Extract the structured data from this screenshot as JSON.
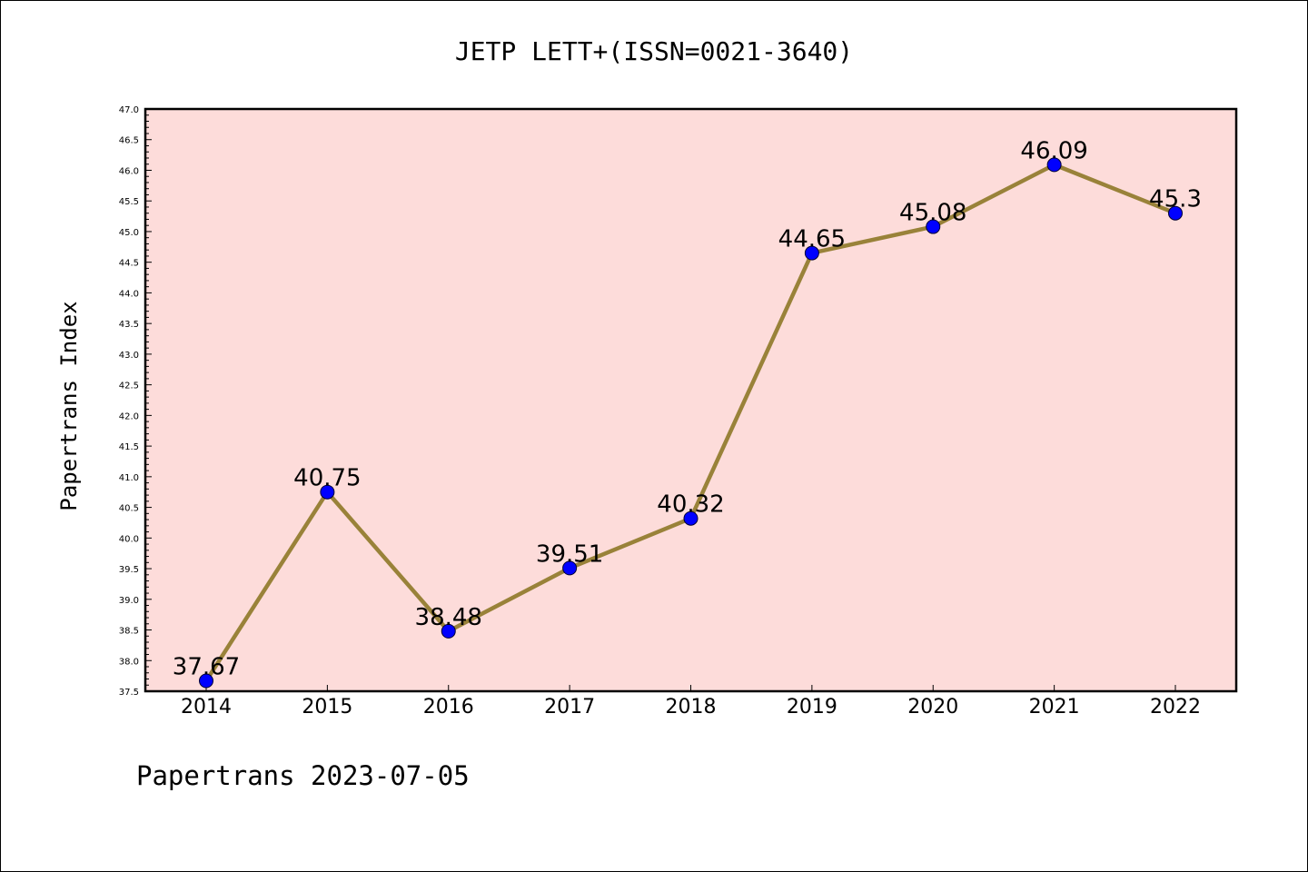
{
  "chart_data": {
    "type": "line",
    "title": "JETP LETT+(ISSN=0021-3640)",
    "ylabel": "Papertrans Index",
    "xlabel": "",
    "categories": [
      "2014",
      "2015",
      "2016",
      "2017",
      "2018",
      "2019",
      "2020",
      "2021",
      "2022"
    ],
    "series": [
      {
        "values": [
          37.67,
          40.75,
          38.48,
          39.51,
          40.32,
          44.65,
          45.08,
          46.09,
          45.3
        ]
      }
    ],
    "data_labels": [
      "37.67",
      "40.75",
      "38.48",
      "39.51",
      "40.32",
      "44.65",
      "45.08",
      "46.09",
      "45.3"
    ],
    "ylim": [
      37.5,
      47.0
    ],
    "y_ticks": [
      "37.5",
      "38.0",
      "38.5",
      "39.0",
      "39.5",
      "40.0",
      "40.5",
      "41.0",
      "41.5",
      "42.0",
      "42.5",
      "43.0",
      "43.5",
      "44.0",
      "44.5",
      "45.0",
      "45.5",
      "46.0",
      "46.5",
      "47.0"
    ],
    "grid": false,
    "colors": {
      "plot_background": "#fddcda",
      "line": "#998239",
      "marker": "#0000ff"
    }
  },
  "footer": {
    "text": "Papertrans 2023-07-05"
  }
}
